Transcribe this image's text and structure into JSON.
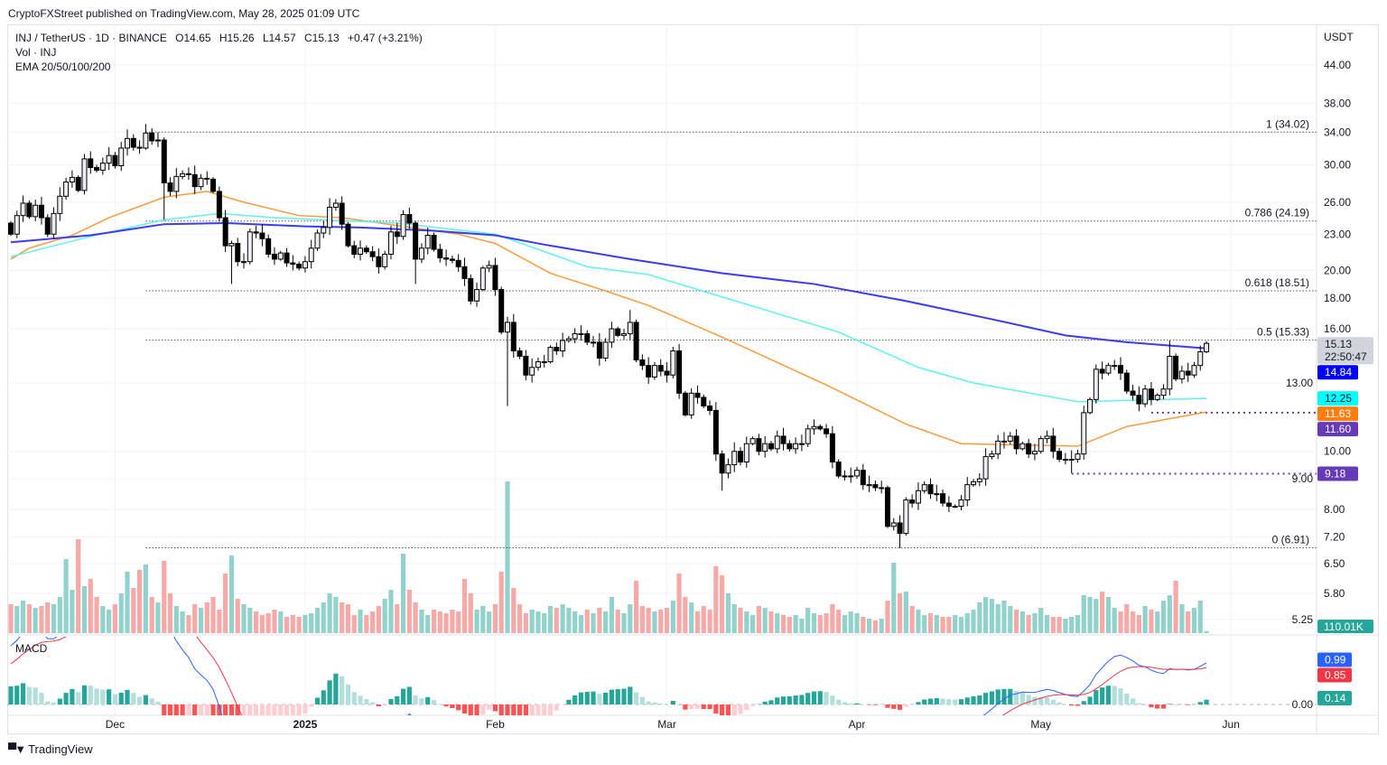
{
  "header": {
    "published": "CryptoFXStreet published on TradingView.com, May 28, 2025 01:09 UTC",
    "symbol": "INJ / TetherUS · 1D · BINANCE",
    "open": "O14.65",
    "high": "H15.26",
    "low": "L14.57",
    "close": "C15.13",
    "change": "+0.47 (+3.21%)",
    "volume_legend": "Vol · INJ",
    "ema_legend": "EMA 20/50/100/200",
    "macd_legend": "MACD"
  },
  "footer": {
    "brand": "TradingView"
  },
  "chart_data": {
    "type": "candlestick",
    "title": "INJ / TetherUS · 1D · BINANCE",
    "price_axis": {
      "currency": "USDT",
      "scale": "log",
      "ticks": [
        "44.00",
        "38.00",
        "34.00",
        "30.00",
        "26.00",
        "23.00",
        "20.00",
        "18.00",
        "16.00",
        "13.00",
        "10.00",
        "9.00",
        "8.00",
        "7.20",
        "6.50",
        "5.80",
        "5.25"
      ]
    },
    "time_axis": [
      {
        "label": "Dec",
        "day_index": 17,
        "bold": false
      },
      {
        "label": "2025",
        "day_index": 48,
        "bold": true
      },
      {
        "label": "Feb",
        "day_index": 79,
        "bold": false
      },
      {
        "label": "Mar",
        "day_index": 107,
        "bold": false
      },
      {
        "label": "Apr",
        "day_index": 138,
        "bold": false
      },
      {
        "label": "May",
        "day_index": 168,
        "bold": false
      },
      {
        "label": "Jun",
        "day_index": 199,
        "bold": false
      }
    ],
    "candles": {
      "first_open": 24.0,
      "close": [
        23.0,
        24.7,
        25.9,
        24.6,
        25.7,
        24.5,
        23.0,
        24.9,
        26.6,
        28.1,
        28.6,
        27.2,
        30.7,
        29.7,
        29.4,
        30.2,
        31.1,
        29.9,
        32.0,
        33.2,
        32.1,
        32.0,
        33.9,
        32.9,
        33.0,
        28.0,
        27.1,
        28.7,
        29.0,
        28.9,
        27.6,
        28.5,
        28.4,
        27.1,
        24.5,
        22.0,
        22.2,
        20.7,
        20.7,
        23.2,
        23.1,
        22.6,
        21.3,
        20.9,
        21.4,
        20.6,
        20.5,
        20.2,
        20.7,
        21.8,
        23.1,
        23.6,
        25.5,
        25.9,
        23.9,
        22.0,
        21.3,
        21.8,
        21.5,
        21.1,
        20.3,
        21.3,
        23.2,
        22.8,
        24.8,
        24.0,
        20.9,
        21.8,
        22.9,
        21.7,
        21.0,
        20.9,
        20.8,
        20.3,
        19.4,
        17.8,
        18.6,
        20.2,
        20.4,
        18.6,
        15.8,
        16.4,
        14.7,
        14.4,
        13.4,
        13.8,
        14.1,
        14.1,
        14.9,
        14.7,
        15.3,
        15.4,
        15.7,
        15.7,
        15.2,
        15.2,
        14.3,
        15.2,
        16.0,
        15.6,
        15.7,
        16.4,
        14.2,
        13.9,
        13.3,
        13.9,
        13.6,
        13.4,
        14.7,
        12.5,
        11.5,
        12.5,
        12.3,
        11.9,
        11.7,
        9.9,
        9.2,
        9.5,
        10.0,
        9.6,
        10.3,
        10.5,
        10.0,
        10.3,
        10.1,
        10.6,
        10.3,
        10.1,
        10.3,
        10.3,
        10.9,
        11.0,
        10.9,
        10.7,
        9.6,
        9.1,
        9.1,
        9.1,
        9.3,
        8.8,
        8.8,
        8.7,
        8.7,
        7.5,
        7.6,
        7.3,
        8.3,
        8.2,
        8.6,
        8.8,
        8.5,
        8.5,
        8.2,
        8.1,
        8.1,
        8.3,
        8.8,
        8.9,
        9.0,
        9.8,
        9.9,
        10.4,
        10.4,
        10.6,
        10.1,
        10.3,
        9.9,
        10.0,
        10.5,
        10.6,
        10.0,
        9.7,
        9.7,
        9.7,
        9.9,
        11.6,
        12.2,
        13.7,
        13.5,
        13.9,
        13.9,
        13.5,
        12.6,
        12.4,
        12.0,
        12.7,
        12.2,
        12.4,
        12.7,
        14.4,
        13.2,
        13.6,
        13.4,
        13.9,
        14.65,
        15.13
      ],
      "notable_wicks": [
        {
          "day_index": 22,
          "high": 35.1
        },
        {
          "day_index": 25,
          "low": 24.3
        },
        {
          "day_index": 36,
          "low": 19.0
        },
        {
          "day_index": 66,
          "low": 19.0
        },
        {
          "day_index": 81,
          "low": 11.9
        },
        {
          "day_index": 101,
          "high": 17.2
        },
        {
          "day_index": 116,
          "low": 8.6
        },
        {
          "day_index": 145,
          "low": 6.9
        },
        {
          "day_index": 173,
          "low": 9.2
        },
        {
          "day_index": 189,
          "high": 15.3
        },
        {
          "day_index": 195,
          "high": 15.26,
          "low": 14.57
        }
      ]
    },
    "volume_millions": [
      1.6,
      1.5,
      1.8,
      1.6,
      1.4,
      1.5,
      1.7,
      1.6,
      2.0,
      4.1,
      2.4,
      5.2,
      2.6,
      3.0,
      2.0,
      1.5,
      1.3,
      1.6,
      2.2,
      3.4,
      2.5,
      3.5,
      3.8,
      2.0,
      1.7,
      4.0,
      2.2,
      1.5,
      1.2,
      1.0,
      1.6,
      1.4,
      1.7,
      2.0,
      1.3,
      3.3,
      4.3,
      1.9,
      1.6,
      1.4,
      1.2,
      1.0,
      1.1,
      1.3,
      1.2,
      0.9,
      1.0,
      0.9,
      1.0,
      1.1,
      1.4,
      1.7,
      2.2,
      2.0,
      1.7,
      1.6,
      1.0,
      1.3,
      1.0,
      1.2,
      1.5,
      1.9,
      2.4,
      1.6,
      4.4,
      2.4,
      1.7,
      1.3,
      1.0,
      1.3,
      1.2,
      1.1,
      1.3,
      1.2,
      3.0,
      2.2,
      1.3,
      1.5,
      1.2,
      1.6,
      3.4,
      8.4,
      2.5,
      1.6,
      1.1,
      1.3,
      1.2,
      1.1,
      1.5,
      1.4,
      1.6,
      1.4,
      1.2,
      1.0,
      1.3,
      1.1,
      1.4,
      1.2,
      2.0,
      1.3,
      1.1,
      1.6,
      2.9,
      1.5,
      1.4,
      1.2,
      1.3,
      1.4,
      1.8,
      3.3,
      2.0,
      1.7,
      1.2,
      1.5,
      1.3,
      3.7,
      3.2,
      2.2,
      1.6,
      1.4,
      1.2,
      1.0,
      1.5,
      1.4,
      1.2,
      1.1,
      1.0,
      0.9,
      1.0,
      0.8,
      1.4,
      1.1,
      1.0,
      1.1,
      1.6,
      1.3,
      1.0,
      1.2,
      1.1,
      0.9,
      0.8,
      0.7,
      0.8,
      1.8,
      3.9,
      2.2,
      2.3,
      1.5,
      1.3,
      1.0,
      1.1,
      1.0,
      0.9,
      0.9,
      1.0,
      0.9,
      1.1,
      1.3,
      1.7,
      2.0,
      1.9,
      1.6,
      1.8,
      1.5,
      1.3,
      1.2,
      1.0,
      1.1,
      1.4,
      1.0,
      0.9,
      0.9,
      0.8,
      0.9,
      1.0,
      2.1,
      2.0,
      1.9,
      2.3,
      2.0,
      1.4,
      1.2,
      1.6,
      1.2,
      1.0,
      1.5,
      1.3,
      1.2,
      1.8,
      2.1,
      2.9,
      1.6,
      1.2,
      1.4,
      1.8,
      0.11
    ],
    "ema": [
      {
        "name": "EMA 50",
        "color": "#ff9a3d",
        "points": [
          [
            0,
            20.9
          ],
          [
            3,
            21.8
          ],
          [
            10,
            22.9
          ],
          [
            16,
            24.5
          ],
          [
            25,
            26.5
          ],
          [
            32,
            27.1
          ],
          [
            38,
            26.0
          ],
          [
            47,
            24.7
          ],
          [
            54,
            24.5
          ],
          [
            73,
            23.0
          ],
          [
            79,
            22.2
          ],
          [
            88,
            19.8
          ],
          [
            97,
            18.5
          ],
          [
            104,
            17.5
          ],
          [
            116,
            15.5
          ],
          [
            133,
            12.9
          ],
          [
            146,
            11.1
          ],
          [
            155,
            10.3
          ],
          [
            174,
            10.2
          ],
          [
            182,
            11.0
          ],
          [
            195,
            11.63
          ]
        ]
      },
      {
        "name": "EMA 100",
        "color": "#5ef2f0",
        "points": [
          [
            0,
            21.1
          ],
          [
            13,
            22.8
          ],
          [
            25,
            24.3
          ],
          [
            34,
            24.9
          ],
          [
            43,
            24.5
          ],
          [
            51,
            24.3
          ],
          [
            63,
            24.0
          ],
          [
            79,
            23.0
          ],
          [
            94,
            20.3
          ],
          [
            104,
            19.7
          ],
          [
            119,
            17.7
          ],
          [
            135,
            15.8
          ],
          [
            148,
            13.8
          ],
          [
            157,
            13.0
          ],
          [
            174,
            12.1
          ],
          [
            195,
            12.25
          ]
        ]
      },
      {
        "name": "EMA 200",
        "color": "#3b3bf5",
        "points": [
          [
            0,
            22.3
          ],
          [
            13,
            22.9
          ],
          [
            25,
            23.9
          ],
          [
            35,
            24.0
          ],
          [
            48,
            23.7
          ],
          [
            57,
            23.6
          ],
          [
            69,
            23.3
          ],
          [
            79,
            22.9
          ],
          [
            87,
            22.1
          ],
          [
            101,
            20.9
          ],
          [
            116,
            19.8
          ],
          [
            131,
            19.0
          ],
          [
            146,
            17.8
          ],
          [
            160,
            16.6
          ],
          [
            172,
            15.6
          ],
          [
            182,
            15.2
          ],
          [
            195,
            14.84
          ]
        ]
      }
    ],
    "fibonacci": {
      "start_day_index": 22,
      "levels": [
        {
          "label": "1 (34.02)",
          "price": 34.02
        },
        {
          "label": "0.786 (24.19)",
          "price": 24.19
        },
        {
          "label": "0.618 (18.51)",
          "price": 18.51
        },
        {
          "label": "0.5 (15.33)",
          "price": 15.33
        },
        {
          "label": "0 (6.91)",
          "price": 6.91
        }
      ]
    },
    "horizontal_levels": [
      {
        "price": 11.6,
        "start_day_index": 186,
        "color": "#673ab7"
      },
      {
        "price": 9.18,
        "start_day_index": 173,
        "color": "#673ab7"
      }
    ],
    "price_labels": [
      {
        "text": "15.13",
        "sub": "22:50:47",
        "value": 15.13,
        "bg": "#d1d4dc",
        "fg": "#131722"
      },
      {
        "text": "14.84",
        "value": 14.84,
        "bg": "#0000ff",
        "fg": "#ffffff"
      },
      {
        "text": "12.25",
        "value": 12.25,
        "bg": "#00ffff",
        "fg": "#131722"
      },
      {
        "text": "11.63",
        "value": 11.63,
        "bg": "#ff7f0e",
        "fg": "#ffffff"
      },
      {
        "text": "11.60",
        "value": 11.6,
        "bg": "#673ab7",
        "fg": "#ffffff"
      },
      {
        "text": "9.18",
        "value": 9.18,
        "bg": "#673ab7",
        "fg": "#ffffff"
      }
    ],
    "volume_label": {
      "text": "110.01K",
      "bg": "#26a69a"
    },
    "macd": {
      "ticks": [
        "0.00"
      ],
      "labels": [
        {
          "text": "0.99",
          "value": 0.99,
          "bg": "#2962ff"
        },
        {
          "text": "0.85",
          "value": 0.85,
          "bg": "#f23645"
        },
        {
          "text": "0.14",
          "value": 0.14,
          "bg": "#26a69a"
        }
      ],
      "colors": {
        "macd": "#2962ff",
        "signal": "#f23645",
        "pos_up": "#26a69a",
        "pos_down": "#b2dfdb",
        "neg_down": "#ff5252",
        "neg_up": "#ffcdd2"
      }
    },
    "colors": {
      "up_body": "#eceef2",
      "down_body": "#000000",
      "vol_up": "#92d2cc",
      "vol_down": "#f7a9a7"
    }
  }
}
